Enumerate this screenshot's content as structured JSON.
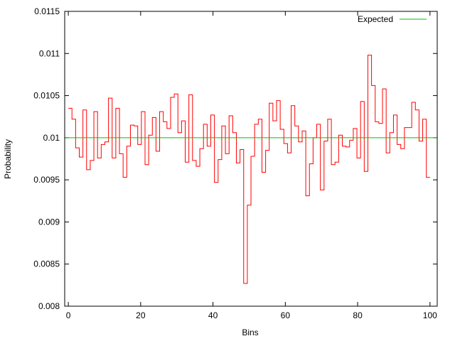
{
  "chart_data": {
    "type": "line",
    "title": "",
    "xlabel": "Bins",
    "ylabel": "Probability",
    "xlim": [
      -1,
      102
    ],
    "ylim": [
      0.008,
      0.0115
    ],
    "xticks": [
      0,
      20,
      40,
      60,
      80,
      100
    ],
    "xtick_labels": [
      "0",
      "20",
      "40",
      "60",
      "80",
      "100"
    ],
    "yticks": [
      0.008,
      0.0085,
      0.009,
      0.0095,
      0.01,
      0.0105,
      0.011,
      0.0115
    ],
    "ytick_labels": [
      "0.008",
      "0.0085",
      "0.009",
      "0.0095",
      "0.01",
      "0.0105",
      "0.011",
      "0.0115"
    ],
    "grid": false,
    "legend_position": "top-right",
    "series": [
      {
        "style": "histogram-steps",
        "color": "#ff0000",
        "bin_range": [
          0,
          100
        ],
        "values": [
          0.01035,
          0.01022,
          0.00988,
          0.00977,
          0.01033,
          0.00962,
          0.00973,
          0.01031,
          0.00976,
          0.00992,
          0.00995,
          0.01047,
          0.00976,
          0.01035,
          0.00981,
          0.00953,
          0.0099,
          0.01015,
          0.01014,
          0.00992,
          0.01031,
          0.00968,
          0.01003,
          0.01024,
          0.00984,
          0.01031,
          0.01019,
          0.01011,
          0.01048,
          0.01052,
          0.01006,
          0.0102,
          0.00971,
          0.01051,
          0.00973,
          0.00966,
          0.00987,
          0.01016,
          0.0099,
          0.01027,
          0.00947,
          0.00974,
          0.01014,
          0.00981,
          0.01026,
          0.01006,
          0.0097,
          0.00986,
          0.00827,
          0.0092,
          0.00978,
          0.01016,
          0.01022,
          0.00959,
          0.00985,
          0.01041,
          0.0102,
          0.01044,
          0.0101,
          0.00993,
          0.00982,
          0.01038,
          0.01014,
          0.00995,
          0.01008,
          0.00931,
          0.00969,
          0.01,
          0.01016,
          0.00938,
          0.00996,
          0.01022,
          0.00968,
          0.00971,
          0.01003,
          0.0099,
          0.00989,
          0.00997,
          0.01011,
          0.00976,
          0.01043,
          0.0096,
          0.01098,
          0.01062,
          0.01019,
          0.01017,
          0.01058,
          0.00982,
          0.01006,
          0.01027,
          0.00992,
          0.00987,
          0.01012,
          0.01012,
          0.01042,
          0.01033,
          0.00996,
          0.01022,
          0.00953
        ]
      },
      {
        "name": "Expected",
        "style": "constant-line",
        "color": "#00c000",
        "value": 0.01
      }
    ]
  }
}
